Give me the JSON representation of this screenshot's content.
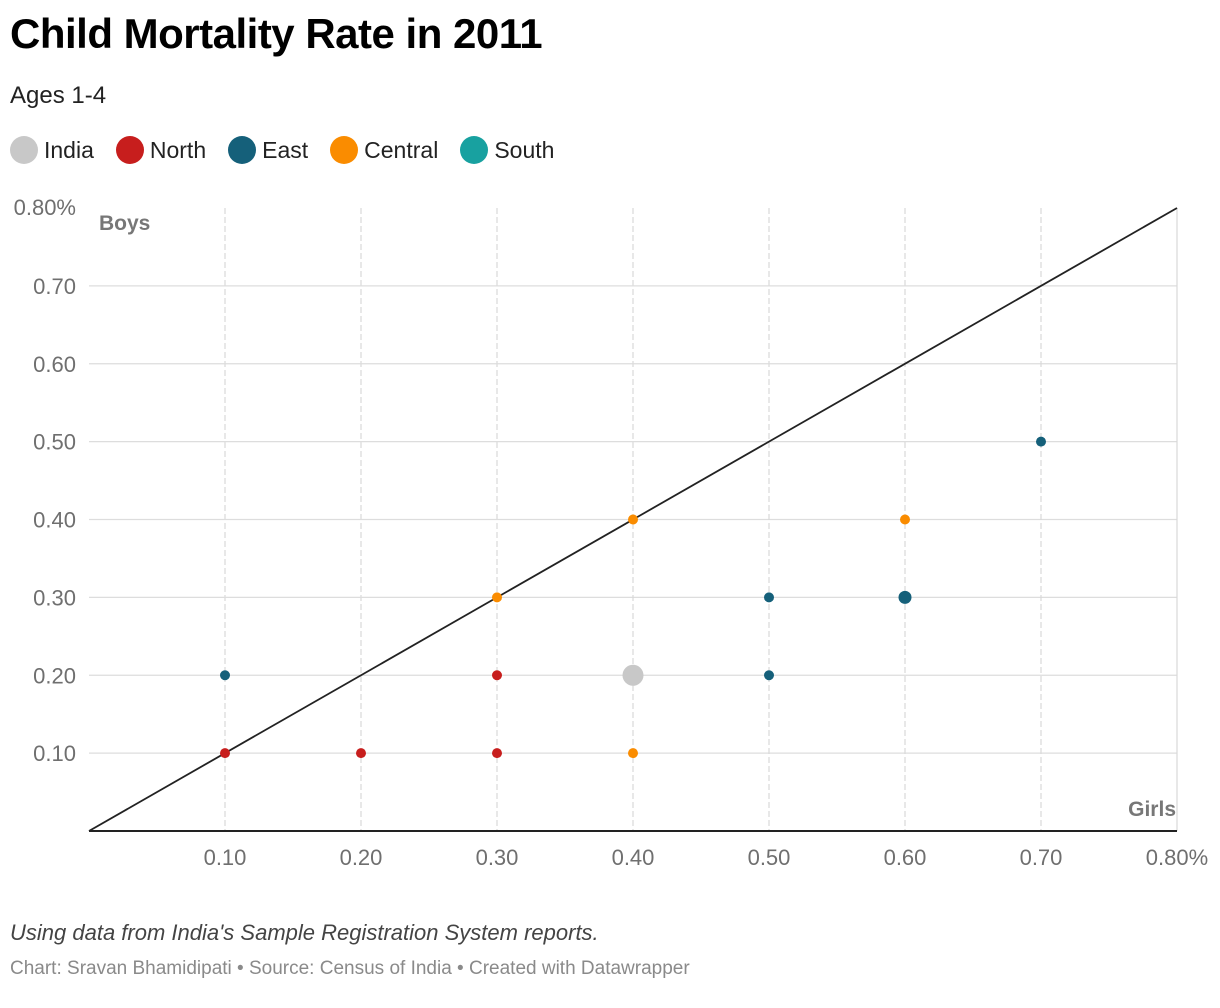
{
  "header": {
    "title": "Child Mortality Rate in 2011",
    "subtitle": "Ages 1-4"
  },
  "legend": [
    {
      "label": "India",
      "color": "#c8c8c8"
    },
    {
      "label": "North",
      "color": "#c71e1d"
    },
    {
      "label": "East",
      "color": "#15607a"
    },
    {
      "label": "Central",
      "color": "#fa8c00"
    },
    {
      "label": "South",
      "color": "#18a1a0"
    }
  ],
  "footer": {
    "note": "Using data from India's Sample Registration System reports.",
    "credit": "Chart: Sravan Bhamidipati • Source: Census of India • Created with Datawrapper"
  },
  "chart_data": {
    "type": "scatter",
    "title": "Child Mortality Rate in 2011",
    "subtitle": "Ages 1-4",
    "xlabel": "Girls",
    "ylabel": "Boys",
    "xlim": [
      0,
      0.8
    ],
    "ylim": [
      0,
      0.8
    ],
    "x_ticks": [
      "0.10",
      "0.20",
      "0.30",
      "0.40",
      "0.50",
      "0.60",
      "0.70",
      "0.80%"
    ],
    "y_ticks": [
      "0.10",
      "0.20",
      "0.30",
      "0.40",
      "0.50",
      "0.60",
      "0.70",
      "0.80%"
    ],
    "grid": true,
    "reference_line": "y = x",
    "series": [
      {
        "name": "India",
        "color": "#c8c8c8",
        "points": [
          {
            "x": 0.4,
            "y": 0.2
          }
        ]
      },
      {
        "name": "North",
        "color": "#c71e1d",
        "points": [
          {
            "x": 0.1,
            "y": 0.1
          },
          {
            "x": 0.2,
            "y": 0.1
          },
          {
            "x": 0.3,
            "y": 0.1
          },
          {
            "x": 0.3,
            "y": 0.2
          }
        ]
      },
      {
        "name": "East",
        "color": "#15607a",
        "points": [
          {
            "x": 0.1,
            "y": 0.2
          },
          {
            "x": 0.5,
            "y": 0.2
          },
          {
            "x": 0.5,
            "y": 0.3
          },
          {
            "x": 0.6,
            "y": 0.3
          },
          {
            "x": 0.7,
            "y": 0.5
          }
        ]
      },
      {
        "name": "Central",
        "color": "#fa8c00",
        "points": [
          {
            "x": 0.3,
            "y": 0.3
          },
          {
            "x": 0.4,
            "y": 0.4
          },
          {
            "x": 0.4,
            "y": 0.1
          },
          {
            "x": 0.6,
            "y": 0.4
          }
        ]
      },
      {
        "name": "South",
        "color": "#18a1a0",
        "points": []
      }
    ]
  }
}
